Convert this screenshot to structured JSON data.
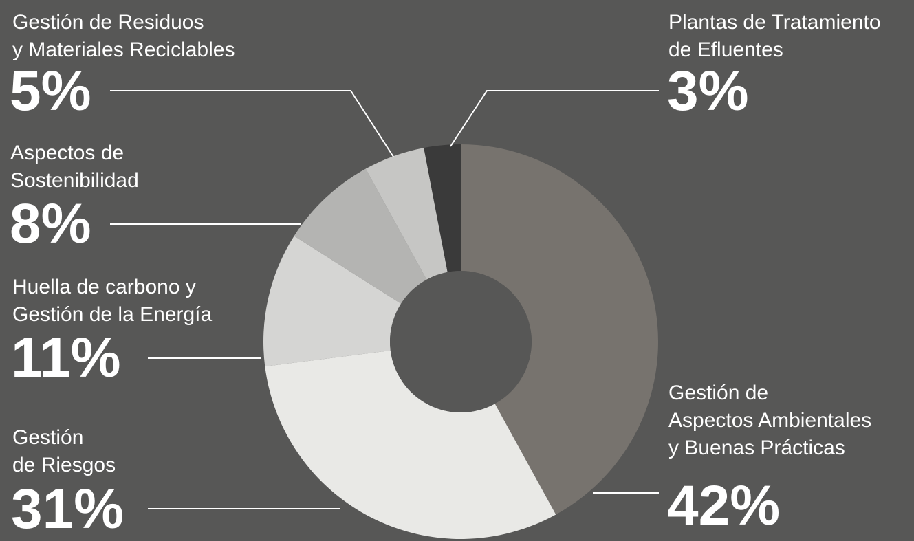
{
  "chart_data": {
    "type": "donut",
    "categories": [
      "Gestión de\nAspectos Ambientales\ny Buenas Prácticas",
      "Gestión\nde Riesgos",
      "Huella de carbono y\nGestión de la Energía",
      "Aspectos de\nSostenibilidad",
      "Gestión de Residuos\ny Materiales Reciclables",
      "Plantas de Tratamiento\nde Efluentes"
    ],
    "values": [
      42,
      31,
      11,
      8,
      5,
      3
    ],
    "value_labels": [
      "42%",
      "31%",
      "11%",
      "8%",
      "5%",
      "3%"
    ],
    "colors": [
      "#77736e",
      "#e9e9e6",
      "#d5d5d3",
      "#b4b4b2",
      "#c6c6c4",
      "#3a3a3a"
    ]
  }
}
